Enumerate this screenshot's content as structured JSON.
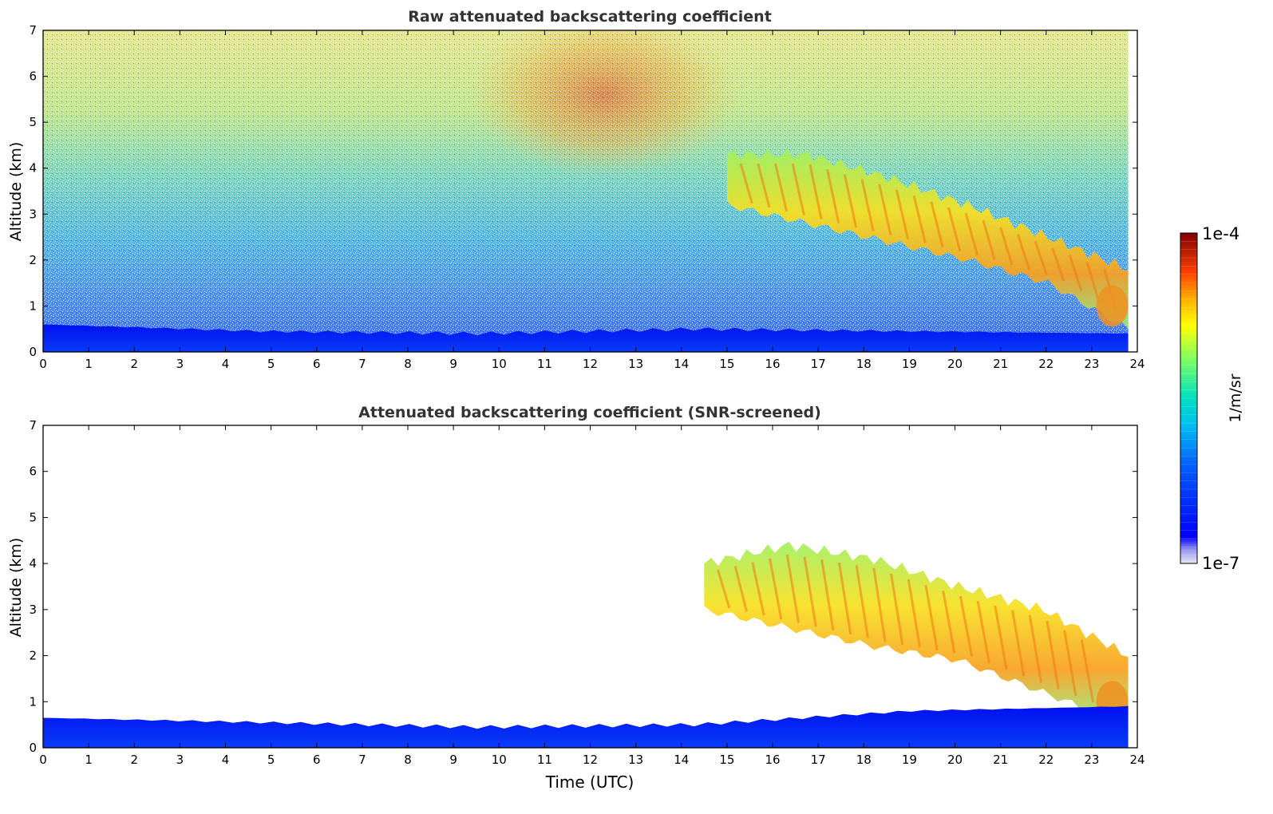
{
  "chart_data": [
    {
      "type": "heatmap",
      "title": "Raw attenuated backscattering coefficient",
      "xlabel": "",
      "ylabel": "Altitude (km)",
      "xlim": [
        0,
        24
      ],
      "ylim": [
        0,
        7
      ],
      "xticks": [
        "0",
        "1",
        "2",
        "3",
        "4",
        "5",
        "6",
        "7",
        "8",
        "9",
        "10",
        "11",
        "12",
        "13",
        "14",
        "15",
        "16",
        "17",
        "18",
        "19",
        "20",
        "21",
        "22",
        "23",
        "24"
      ],
      "yticks": [
        "0",
        "1",
        "2",
        "3",
        "4",
        "5",
        "6",
        "7"
      ],
      "features": [
        {
          "feature": "boundary layer",
          "time_range_utc": [
            0,
            23.8
          ],
          "top_km": [
            0.6,
            0.45,
            0.4,
            0.5,
            0.45,
            0.4
          ]
        },
        {
          "feature": "descending aerosol/cloud layer",
          "time_range_utc": [
            15,
            23.8
          ],
          "base_km": [
            3.2,
            2.8,
            2.4,
            2.0,
            1.5,
            0.5
          ],
          "top_km": [
            4.3,
            4.3,
            3.8,
            3.2,
            2.5,
            1.8
          ]
        },
        {
          "feature": "noisy sky background (high values)",
          "time_range_utc": [
            10.5,
            14.5
          ],
          "alt_range_km": [
            4,
            7
          ]
        }
      ]
    },
    {
      "type": "heatmap",
      "title": "Attenuated backscattering coefficient (SNR-screened)",
      "xlabel": "Time (UTC)",
      "ylabel": "Altitude (km)",
      "xlim": [
        0,
        24
      ],
      "ylim": [
        0,
        7
      ],
      "xticks": [
        "0",
        "1",
        "2",
        "3",
        "4",
        "5",
        "6",
        "7",
        "8",
        "9",
        "10",
        "11",
        "12",
        "13",
        "14",
        "15",
        "16",
        "17",
        "18",
        "19",
        "20",
        "21",
        "22",
        "23",
        "24"
      ],
      "yticks": [
        "0",
        "1",
        "2",
        "3",
        "4",
        "5",
        "6",
        "7"
      ],
      "features": [
        {
          "feature": "boundary layer",
          "time_range_utc": [
            0,
            23.8
          ],
          "top_km": [
            0.65,
            0.55,
            0.45,
            0.5,
            0.8,
            0.9
          ]
        },
        {
          "feature": "descending aerosol/cloud layer",
          "time_range_utc": [
            14.5,
            23.8
          ],
          "base_km": [
            3.0,
            2.6,
            2.2,
            1.9,
            1.2,
            0.5
          ],
          "top_km": [
            4.0,
            4.4,
            4.1,
            3.5,
            3.0,
            2.0
          ]
        }
      ]
    }
  ],
  "colorbar": {
    "min_label": "1e-7",
    "max_label": "1e-4",
    "label": "1/m/sr",
    "scale": "log",
    "colormap": "jet"
  }
}
